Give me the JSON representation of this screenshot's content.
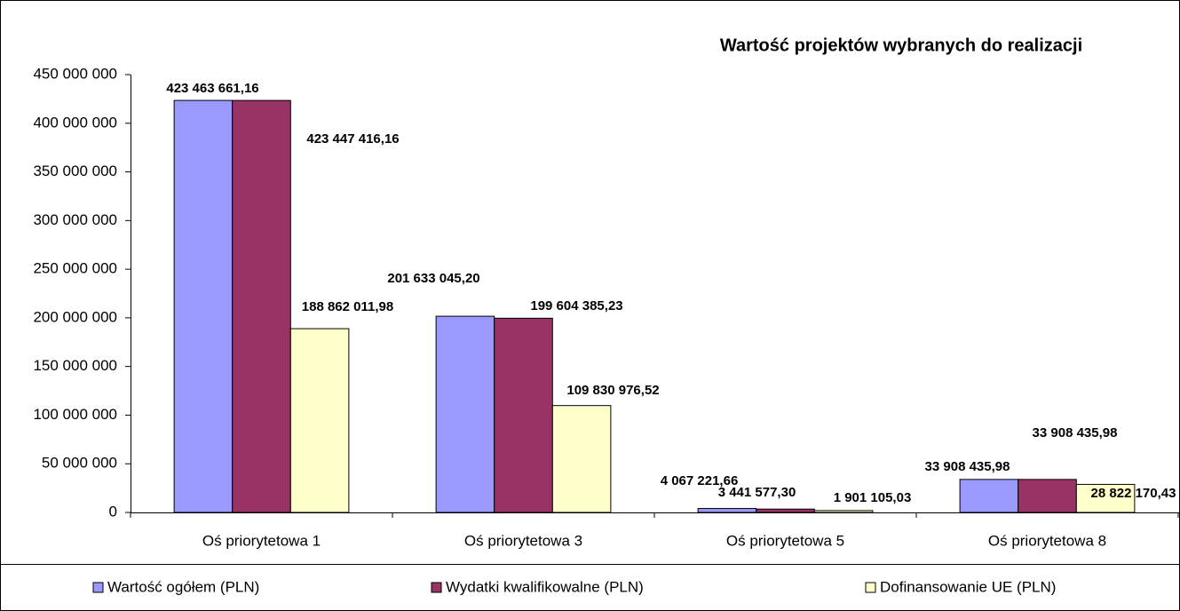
{
  "chart_data": {
    "type": "bar",
    "title": "Wartość projektów wybranych do realizacji",
    "categories": [
      "Oś priorytetowa 1",
      "Oś priorytetowa 3",
      "Oś priorytetowa 5",
      "Oś priorytetowa 8"
    ],
    "series": [
      {
        "name": "Wartość ogółem (PLN)",
        "color": "#9999ff",
        "values": [
          423463661.16,
          201633045.2,
          4067221.66,
          33908435.98
        ],
        "value_labels": [
          "423 463 661,16",
          "201 633 045,20",
          "4 067 221,66",
          "33 908 435,98"
        ]
      },
      {
        "name": "Wydatki kwalifikowalne (PLN)",
        "color": "#993366",
        "values": [
          423447416.16,
          199604385.23,
          3441577.3,
          33908435.98
        ],
        "value_labels": [
          "423 447 416,16",
          "199 604 385,23",
          "3 441 577,30",
          "33 908 435,98"
        ]
      },
      {
        "name": "Dofinansowanie UE (PLN)",
        "color": "#ffffcc",
        "values": [
          188862011.98,
          109830976.52,
          1901105.03,
          28822170.43
        ],
        "value_labels": [
          "188 862 011,98",
          "109 830 976,52",
          "1 901 105,03",
          "28 822 170,43"
        ]
      }
    ],
    "ylim": [
      0,
      450000000
    ],
    "yticks": [
      {
        "value": 0,
        "label": "0"
      },
      {
        "value": 50000000,
        "label": "50 000 000"
      },
      {
        "value": 100000000,
        "label": "100 000 000"
      },
      {
        "value": 150000000,
        "label": "150 000 000"
      },
      {
        "value": 200000000,
        "label": "200 000 000"
      },
      {
        "value": 250000000,
        "label": "250 000 000"
      },
      {
        "value": 300000000,
        "label": "300 000 000"
      },
      {
        "value": 350000000,
        "label": "350 000 000"
      },
      {
        "value": 400000000,
        "label": "400 000 000"
      },
      {
        "value": 450000000,
        "label": "450 000 000"
      }
    ],
    "grid": false,
    "legend": "bottom"
  }
}
